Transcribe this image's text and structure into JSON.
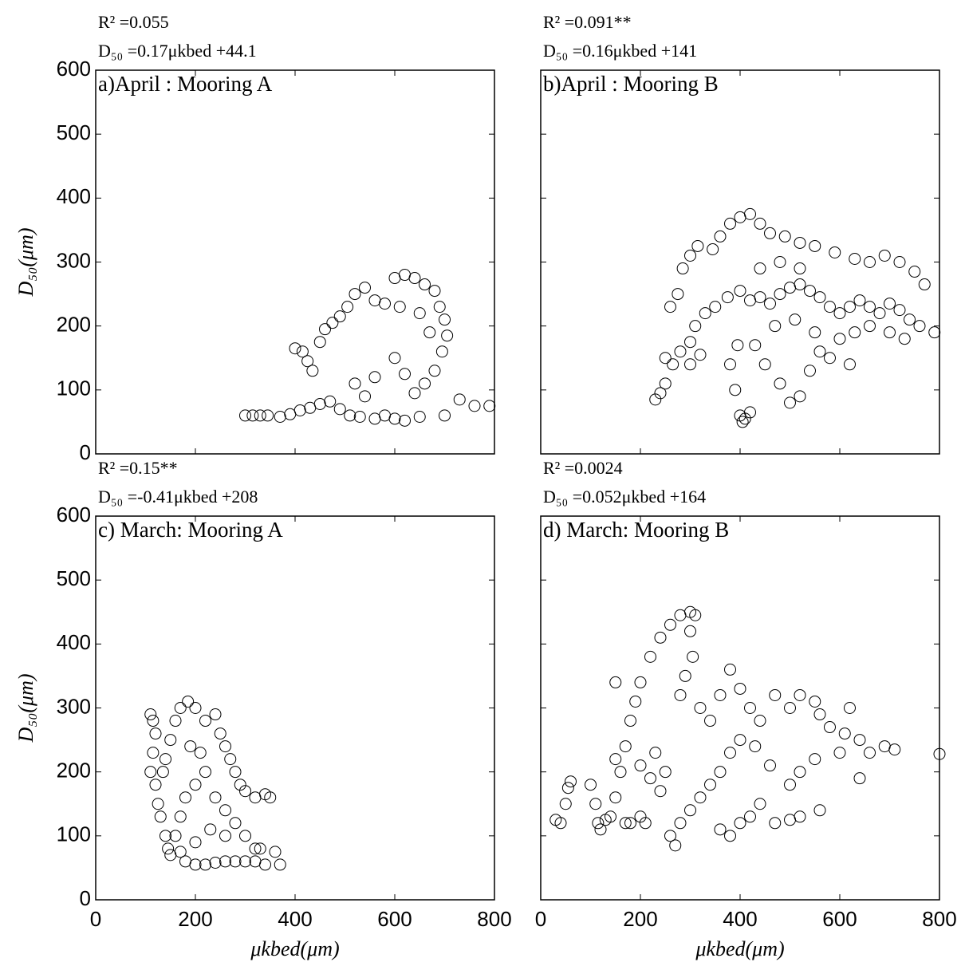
{
  "chart_data": [
    {
      "type": "scatter",
      "title": "a)April : Mooring A",
      "annotations": [
        "R² =0.055",
        "D₅₀ =0.17μkbed +44.1"
      ],
      "ylabel": "D₅₀(μm)",
      "color": "#000000",
      "xlim": [
        0,
        800
      ],
      "ylim": [
        0,
        600
      ],
      "xticks": [
        0,
        200,
        400,
        600,
        800
      ],
      "yticks": [
        0,
        100,
        200,
        300,
        400,
        500,
        600
      ],
      "xtick_labels": false,
      "ytick_labels": true,
      "x": [
        300,
        315,
        330,
        345,
        370,
        390,
        410,
        430,
        450,
        470,
        490,
        510,
        530,
        560,
        580,
        600,
        620,
        650,
        700,
        730,
        760,
        790,
        400,
        415,
        425,
        435,
        450,
        460,
        475,
        490,
        505,
        520,
        540,
        560,
        580,
        600,
        620,
        640,
        660,
        680,
        690,
        700,
        705,
        695,
        680,
        660,
        640,
        620,
        600,
        560,
        540,
        520,
        670,
        650,
        610
      ],
      "y": [
        60,
        60,
        60,
        60,
        58,
        62,
        68,
        72,
        78,
        82,
        70,
        60,
        58,
        55,
        60,
        55,
        52,
        58,
        60,
        85,
        75,
        75,
        165,
        160,
        145,
        130,
        175,
        195,
        205,
        215,
        230,
        250,
        260,
        240,
        235,
        275,
        280,
        275,
        265,
        255,
        230,
        210,
        185,
        160,
        130,
        110,
        95,
        125,
        150,
        120,
        90,
        110,
        190,
        220,
        230
      ]
    },
    {
      "type": "scatter",
      "title": "b)April : Mooring B",
      "annotations": [
        "R² =0.091**",
        "D₅₀ =0.16μkbed +141"
      ],
      "color": "#000000",
      "xlim": [
        0,
        800
      ],
      "ylim": [
        0,
        600
      ],
      "xticks": [
        0,
        200,
        400,
        600,
        800
      ],
      "yticks": [
        0,
        100,
        200,
        300,
        400,
        500,
        600
      ],
      "xtick_labels": false,
      "ytick_labels": false,
      "x": [
        230,
        240,
        250,
        265,
        280,
        300,
        310,
        330,
        350,
        375,
        400,
        420,
        440,
        460,
        480,
        500,
        520,
        540,
        560,
        580,
        600,
        620,
        640,
        660,
        680,
        700,
        720,
        740,
        760,
        790,
        260,
        275,
        285,
        300,
        315,
        345,
        360,
        380,
        400,
        420,
        440,
        460,
        490,
        520,
        550,
        590,
        630,
        660,
        690,
        720,
        750,
        770,
        400,
        405,
        410,
        420,
        390,
        380,
        395,
        430,
        450,
        480,
        500,
        520,
        540,
        560,
        600,
        630,
        660,
        700,
        730,
        300,
        320,
        250,
        470,
        510,
        550,
        580,
        620,
        480,
        440,
        520
      ],
      "y": [
        85,
        95,
        110,
        140,
        160,
        175,
        200,
        220,
        230,
        245,
        255,
        240,
        245,
        235,
        250,
        260,
        265,
        255,
        245,
        230,
        220,
        230,
        240,
        230,
        220,
        235,
        225,
        210,
        200,
        190,
        230,
        250,
        290,
        310,
        325,
        320,
        340,
        360,
        370,
        375,
        360,
        345,
        340,
        330,
        325,
        315,
        305,
        300,
        310,
        300,
        285,
        265,
        60,
        50,
        55,
        65,
        100,
        140,
        170,
        170,
        140,
        110,
        80,
        90,
        130,
        160,
        180,
        190,
        200,
        190,
        180,
        140,
        155,
        150,
        200,
        210,
        190,
        150,
        140,
        300,
        290,
        290
      ]
    },
    {
      "type": "scatter",
      "title": "c) March: Mooring A",
      "annotations": [
        "R² =0.15**",
        "D₅₀ =-0.41μkbed +208"
      ],
      "ylabel": "D₅₀(μm)",
      "xlabel": "μkbed(μm)",
      "color": "#000000",
      "xlim": [
        0,
        800
      ],
      "ylim": [
        0,
        600
      ],
      "xticks": [
        0,
        200,
        400,
        600,
        800
      ],
      "yticks": [
        0,
        100,
        200,
        300,
        400,
        500,
        600
      ],
      "xtick_labels": true,
      "ytick_labels": true,
      "x": [
        110,
        115,
        120,
        115,
        110,
        120,
        125,
        130,
        140,
        145,
        150,
        135,
        140,
        150,
        160,
        170,
        185,
        200,
        220,
        240,
        250,
        260,
        270,
        280,
        290,
        300,
        320,
        340,
        350,
        360,
        370,
        340,
        320,
        300,
        280,
        260,
        240,
        220,
        200,
        180,
        170,
        160,
        170,
        180,
        200,
        220,
        240,
        260,
        280,
        300,
        320,
        330,
        200,
        230,
        260,
        190,
        210
      ],
      "y": [
        290,
        280,
        260,
        230,
        200,
        180,
        150,
        130,
        100,
        80,
        70,
        200,
        220,
        250,
        280,
        300,
        310,
        300,
        280,
        290,
        260,
        240,
        220,
        200,
        180,
        170,
        160,
        165,
        160,
        75,
        55,
        55,
        60,
        60,
        60,
        60,
        58,
        55,
        55,
        60,
        75,
        100,
        130,
        160,
        180,
        200,
        160,
        140,
        120,
        100,
        80,
        80,
        90,
        110,
        100,
        240,
        230
      ]
    },
    {
      "type": "scatter",
      "title": "d) March: Mooring B",
      "annotations": [
        "R² =0.0024",
        "D₅₀ =0.052μkbed +164"
      ],
      "xlabel": "μkbed(μm)",
      "color": "#000000",
      "xlim": [
        0,
        800
      ],
      "ylim": [
        0,
        600
      ],
      "xticks": [
        0,
        200,
        400,
        600,
        800
      ],
      "yticks": [
        0,
        100,
        200,
        300,
        400,
        500,
        600
      ],
      "xtick_labels": true,
      "ytick_labels": false,
      "x": [
        30,
        40,
        50,
        55,
        60,
        100,
        110,
        115,
        120,
        130,
        140,
        150,
        160,
        170,
        180,
        190,
        200,
        220,
        240,
        260,
        280,
        300,
        310,
        300,
        305,
        290,
        280,
        320,
        340,
        360,
        380,
        400,
        420,
        440,
        470,
        500,
        520,
        550,
        560,
        580,
        610,
        620,
        640,
        660,
        690,
        710,
        800,
        640,
        600,
        550,
        520,
        500,
        460,
        430,
        400,
        380,
        360,
        340,
        320,
        300,
        280,
        260,
        270,
        240,
        220,
        200,
        230,
        250,
        360,
        380,
        400,
        420,
        440,
        470,
        500,
        520,
        560,
        180,
        200,
        150,
        170,
        150,
        210
      ],
      "y": [
        125,
        120,
        150,
        175,
        185,
        180,
        150,
        120,
        110,
        125,
        130,
        160,
        200,
        240,
        280,
        310,
        340,
        380,
        410,
        430,
        445,
        450,
        445,
        420,
        380,
        350,
        320,
        300,
        280,
        320,
        360,
        330,
        300,
        280,
        320,
        300,
        320,
        310,
        290,
        270,
        260,
        300,
        250,
        230,
        240,
        235,
        228,
        190,
        230,
        220,
        200,
        180,
        210,
        240,
        250,
        230,
        200,
        180,
        160,
        140,
        120,
        100,
        85,
        170,
        190,
        210,
        230,
        200,
        110,
        100,
        120,
        130,
        150,
        120,
        125,
        130,
        140,
        120,
        130,
        220,
        120,
        340,
        120
      ]
    }
  ]
}
